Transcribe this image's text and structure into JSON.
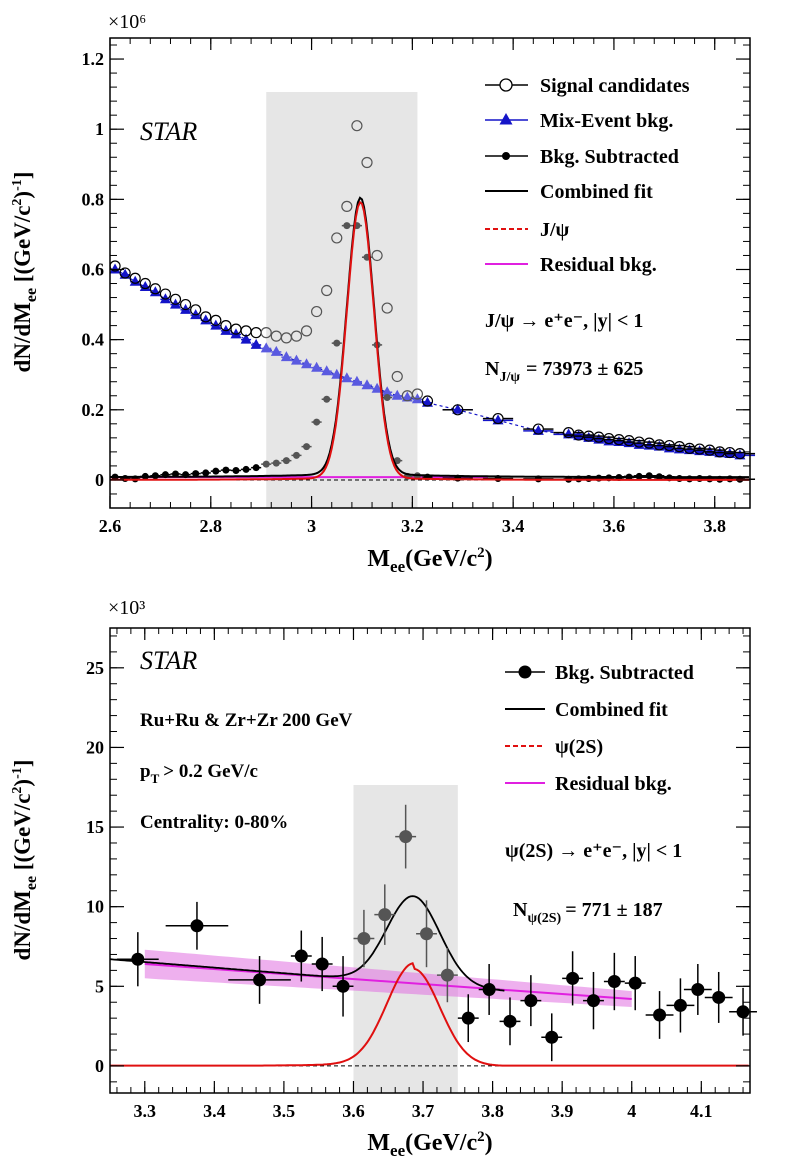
{
  "chart_data": [
    {
      "type": "scatter",
      "experiment_label": "STAR",
      "exponent_label": "×10⁶",
      "xlabel": "M_ee(GeV/c²)",
      "ylabel": "dN/dM_ee [(GeV/c²)⁻¹]",
      "xlim": [
        2.6,
        3.87
      ],
      "ylim": [
        -0.08,
        1.26
      ],
      "x_ticks": [
        2.6,
        2.8,
        3.0,
        3.2,
        3.4,
        3.6,
        3.8
      ],
      "x_tick_labels": [
        "2.6",
        "2.8",
        "3",
        "3.2",
        "3.4",
        "3.6",
        "3.8"
      ],
      "y_ticks": [
        0,
        0.2,
        0.4,
        0.6,
        0.8,
        1.0,
        1.2
      ],
      "y_tick_labels": [
        "0",
        "0.2",
        "0.4",
        "0.6",
        "0.8",
        "1",
        "1.2"
      ],
      "shaded_window": [
        2.91,
        3.21
      ],
      "legend": [
        "Signal candidates",
        "Mix-Event bkg.",
        "Bkg. Subtracted",
        "Combined fit",
        "J/ψ",
        "Residual bkg."
      ],
      "annotations": [
        "J/ψ  → e⁺e⁻, |y| < 1",
        "N_J/ψ = 73973  ± 625"
      ],
      "annotation_parts": {
        "decay": "J/ψ  → e⁺e⁻, |y| < 1",
        "count_label": "N",
        "count_sub": "J/ψ",
        "count_value": "= 73973  ± 625"
      },
      "fit_peak": {
        "mean": 3.097,
        "sigma": 0.027,
        "amplitude": 0.785
      },
      "residual_bkg_level": 0.008,
      "series": [
        {
          "name": "Signal candidates",
          "x": [
            2.61,
            2.63,
            2.65,
            2.67,
            2.69,
            2.71,
            2.73,
            2.75,
            2.77,
            2.79,
            2.81,
            2.83,
            2.85,
            2.87,
            2.89,
            2.91,
            2.93,
            2.95,
            2.97,
            2.99,
            3.01,
            3.03,
            3.05,
            3.07,
            3.09,
            3.11,
            3.13,
            3.15,
            3.17,
            3.19,
            3.21,
            3.23,
            3.29,
            3.37,
            3.45,
            3.51,
            3.53,
            3.55,
            3.57,
            3.59,
            3.61,
            3.63,
            3.65,
            3.67,
            3.69,
            3.71,
            3.73,
            3.75,
            3.77,
            3.79,
            3.81,
            3.83,
            3.85
          ],
          "values": [
            0.61,
            0.59,
            0.575,
            0.56,
            0.545,
            0.53,
            0.515,
            0.5,
            0.485,
            0.465,
            0.455,
            0.44,
            0.43,
            0.425,
            0.42,
            0.42,
            0.41,
            0.405,
            0.41,
            0.425,
            0.48,
            0.54,
            0.69,
            0.78,
            1.01,
            0.905,
            0.64,
            0.49,
            0.295,
            0.24,
            0.245,
            0.225,
            0.2,
            0.175,
            0.145,
            0.135,
            0.128,
            0.125,
            0.122,
            0.118,
            0.115,
            0.112,
            0.108,
            0.105,
            0.1,
            0.098,
            0.095,
            0.09,
            0.088,
            0.085,
            0.08,
            0.078,
            0.075
          ]
        },
        {
          "name": "Mix-Event bkg.",
          "x": [
            2.61,
            2.63,
            2.65,
            2.67,
            2.69,
            2.71,
            2.73,
            2.75,
            2.77,
            2.79,
            2.81,
            2.83,
            2.85,
            2.87,
            2.89,
            2.91,
            2.93,
            2.95,
            2.97,
            2.99,
            3.01,
            3.03,
            3.05,
            3.07,
            3.09,
            3.11,
            3.13,
            3.15,
            3.17,
            3.19,
            3.21,
            3.23,
            3.29,
            3.37,
            3.45,
            3.51,
            3.53,
            3.55,
            3.57,
            3.59,
            3.61,
            3.63,
            3.65,
            3.67,
            3.69,
            3.71,
            3.73,
            3.75,
            3.77,
            3.79,
            3.81,
            3.83,
            3.85
          ],
          "values": [
            0.6,
            0.585,
            0.565,
            0.55,
            0.535,
            0.515,
            0.5,
            0.485,
            0.47,
            0.455,
            0.44,
            0.425,
            0.415,
            0.4,
            0.385,
            0.375,
            0.365,
            0.35,
            0.34,
            0.33,
            0.32,
            0.31,
            0.3,
            0.29,
            0.28,
            0.27,
            0.26,
            0.25,
            0.24,
            0.235,
            0.23,
            0.22,
            0.2,
            0.17,
            0.14,
            0.13,
            0.125,
            0.12,
            0.115,
            0.11,
            0.108,
            0.105,
            0.1,
            0.098,
            0.095,
            0.09,
            0.087,
            0.085,
            0.082,
            0.08,
            0.076,
            0.074,
            0.07
          ]
        },
        {
          "name": "Bkg. Subtracted",
          "x": [
            2.61,
            2.63,
            2.65,
            2.67,
            2.69,
            2.71,
            2.73,
            2.75,
            2.77,
            2.79,
            2.81,
            2.83,
            2.85,
            2.87,
            2.89,
            2.91,
            2.93,
            2.95,
            2.97,
            2.99,
            3.01,
            3.03,
            3.05,
            3.07,
            3.09,
            3.11,
            3.13,
            3.15,
            3.17,
            3.19,
            3.21,
            3.23,
            3.29,
            3.37,
            3.45,
            3.51,
            3.53,
            3.55,
            3.57,
            3.59,
            3.61,
            3.63,
            3.65,
            3.67,
            3.69,
            3.71,
            3.73,
            3.75,
            3.77,
            3.79,
            3.81,
            3.83,
            3.85
          ],
          "values": [
            0.008,
            0.004,
            0.003,
            0.01,
            0.012,
            0.015,
            0.017,
            0.015,
            0.018,
            0.02,
            0.025,
            0.028,
            0.027,
            0.03,
            0.035,
            0.045,
            0.048,
            0.055,
            0.07,
            0.095,
            0.165,
            0.23,
            0.39,
            0.725,
            0.725,
            0.635,
            0.385,
            0.235,
            0.055,
            0.01,
            0.012,
            0.008,
            0.005,
            0.004,
            0.003,
            0.002,
            0.003,
            0.004,
            0.005,
            0.006,
            0.007,
            0.008,
            0.01,
            0.012,
            0.009,
            0.006,
            0.004,
            0.003,
            0.004,
            0.003,
            0.002,
            0.003,
            0.002
          ]
        }
      ]
    },
    {
      "type": "scatter",
      "experiment_label": "STAR",
      "exponent_label": "×10³",
      "xlabel": "M_ee(GeV/c²)",
      "ylabel": "dN/dM_ee [(GeV/c²)⁻¹]",
      "xlim": [
        3.25,
        4.17
      ],
      "ylim": [
        -1.7,
        27.5
      ],
      "x_ticks": [
        3.3,
        3.4,
        3.5,
        3.6,
        3.7,
        3.8,
        3.9,
        4.0,
        4.1
      ],
      "x_tick_labels": [
        "3.3",
        "3.4",
        "3.5",
        "3.6",
        "3.7",
        "3.8",
        "3.9",
        "4",
        "4.1"
      ],
      "y_ticks": [
        0,
        5,
        10,
        15,
        20,
        25
      ],
      "y_tick_labels": [
        "0",
        "5",
        "10",
        "15",
        "20",
        "25"
      ],
      "shaded_window": [
        3.6,
        3.75
      ],
      "legend": [
        "Bkg. Subtracted",
        "Combined fit",
        "ψ(2S)",
        "Residual bkg."
      ],
      "annotations": [
        "Ru+Ru & Zr+Zr 200 GeV",
        "p_T > 0.2 GeV/c",
        "Centrality: 0-80%",
        "ψ(2S)  → e⁺e⁻, |y| < 1",
        "N_ψ(2S) = 771  ± 187"
      ],
      "annotation_parts": {
        "system": "Ru+Ru & Zr+Zr 200 GeV",
        "pt_label": "p",
        "pt_sub": "T",
        "pt_cut": "> 0.2 GeV/c",
        "centrality": "Centrality: 0-80%",
        "decay": "ψ(2S)  → e⁺e⁻, |y| < 1",
        "count_label": "N",
        "count_sub": "ψ(2S)",
        "count_value": "= 771  ± 187"
      },
      "fit_peak": {
        "mean": 3.686,
        "sigma": 0.038,
        "amplitude": 6.1
      },
      "residual_bkg": {
        "x_range": [
          3.3,
          4.0
        ],
        "start": 6.4,
        "end": 4.2
      },
      "series": [
        {
          "name": "Bkg. Subtracted",
          "x": [
            3.29,
            3.375,
            3.465,
            3.525,
            3.555,
            3.585,
            3.615,
            3.645,
            3.675,
            3.705,
            3.735,
            3.765,
            3.795,
            3.825,
            3.855,
            3.885,
            3.915,
            3.945,
            3.975,
            4.005,
            4.04,
            4.07,
            4.095,
            4.125,
            4.16
          ],
          "values": [
            6.7,
            8.8,
            5.4,
            6.9,
            6.4,
            5.0,
            8.0,
            9.5,
            14.4,
            8.3,
            5.7,
            3.0,
            4.8,
            2.8,
            4.1,
            1.8,
            5.5,
            4.1,
            5.3,
            5.2,
            3.2,
            3.8,
            4.8,
            4.3,
            3.4
          ],
          "errors": [
            1.7,
            1.5,
            1.5,
            1.6,
            1.7,
            1.9,
            1.8,
            1.9,
            2.0,
            2.1,
            1.7,
            1.5,
            1.6,
            1.5,
            1.6,
            1.5,
            1.7,
            1.8,
            1.8,
            1.7,
            1.5,
            1.7,
            1.6,
            1.6,
            1.5
          ],
          "x_half_width": [
            0.03,
            0.045,
            0.045,
            0.015,
            0.015,
            0.015,
            0.015,
            0.015,
            0.015,
            0.015,
            0.015,
            0.015,
            0.015,
            0.015,
            0.015,
            0.015,
            0.015,
            0.015,
            0.015,
            0.015,
            0.02,
            0.02,
            0.02,
            0.02,
            0.02
          ]
        }
      ]
    }
  ]
}
